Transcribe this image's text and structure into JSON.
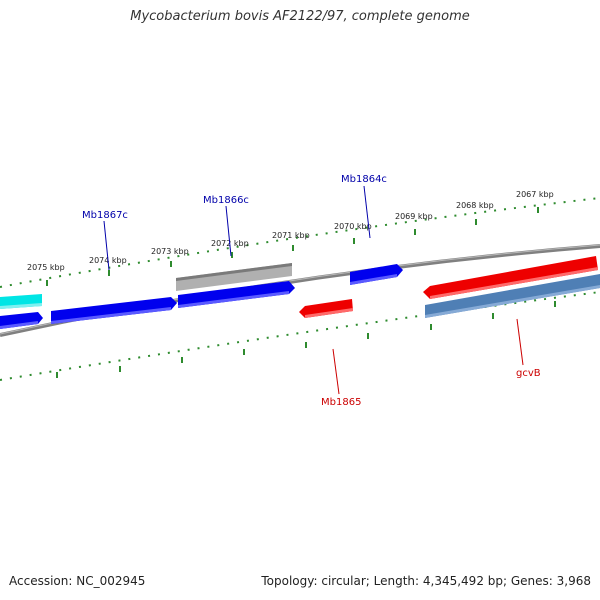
{
  "title": "Mycobacterium bovis AF2122/97, complete genome",
  "footer": {
    "accession": "Accession: NC_002945",
    "summary": "Topology: circular; Length: 4,345,492 bp; Genes: 3,968"
  },
  "tick_labels": [
    "2075 kbp",
    "2074 kbp",
    "2073 kbp",
    "2072 kbp",
    "2071 kbp",
    "2070 kbp",
    "2069 kbp",
    "2068 kbp",
    "2067 kbp"
  ],
  "gene_labels": {
    "Mb1867c": "Mb1867c",
    "Mb1866c": "Mb1866c",
    "Mb1864c": "Mb1864c",
    "Mb1865": "Mb1865",
    "gcvB": "gcvB"
  },
  "colors": {
    "backbone": "#808080",
    "tick": "#2e8b2e",
    "forward_gene": "#0000ee",
    "reverse_gene": "#ee0000",
    "cyan_gene": "#00e5e5",
    "grey_gene": "#b0b0b0",
    "steel_gene": "#4f7fb5",
    "reverse_label": "#cc0000",
    "forward_label": "#0000aa"
  }
}
